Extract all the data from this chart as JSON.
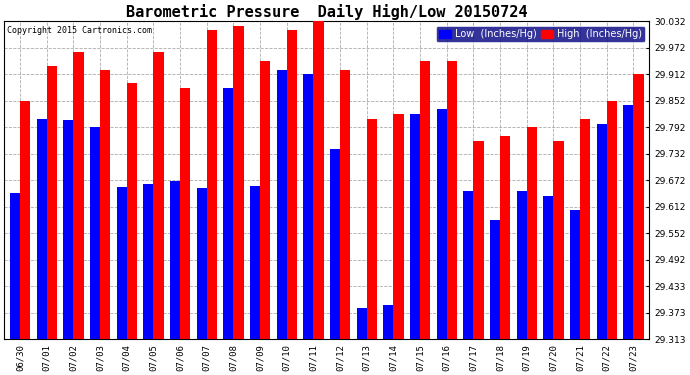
{
  "title": "Barometric Pressure  Daily High/Low 20150724",
  "copyright": "Copyright 2015 Cartronics.com",
  "legend_low": "Low  (Inches/Hg)",
  "legend_high": "High  (Inches/Hg)",
  "dates": [
    "06/30",
    "07/01",
    "07/02",
    "07/03",
    "07/04",
    "07/05",
    "07/06",
    "07/07",
    "07/08",
    "07/09",
    "07/10",
    "07/11",
    "07/12",
    "07/13",
    "07/14",
    "07/15",
    "07/16",
    "07/17",
    "07/18",
    "07/19",
    "07/20",
    "07/21",
    "07/22",
    "07/23"
  ],
  "low_values": [
    29.643,
    29.812,
    29.808,
    29.792,
    29.658,
    29.664,
    29.671,
    29.655,
    29.881,
    29.66,
    29.922,
    29.912,
    29.743,
    29.383,
    29.39,
    29.822,
    29.833,
    29.648,
    29.582,
    29.649,
    29.636,
    29.604,
    29.8,
    29.843
  ],
  "high_values": [
    29.852,
    29.932,
    29.962,
    29.922,
    29.892,
    29.962,
    29.882,
    30.012,
    30.022,
    29.942,
    30.012,
    30.042,
    29.922,
    29.812,
    29.822,
    29.942,
    29.942,
    29.762,
    29.772,
    29.792,
    29.762,
    29.812,
    29.852,
    29.912
  ],
  "ylim_min": 29.313,
  "ylim_max": 30.032,
  "yticks": [
    29.313,
    29.373,
    29.433,
    29.492,
    29.552,
    29.612,
    29.672,
    29.732,
    29.792,
    29.852,
    29.912,
    29.972,
    30.032
  ],
  "low_color": "#0000ff",
  "high_color": "#ff0000",
  "bg_color": "#ffffff",
  "grid_color": "#888888",
  "title_fontsize": 11,
  "tick_fontsize": 6.5,
  "bar_width": 0.38,
  "legend_facecolor": "#000080",
  "legend_fontsize": 7
}
